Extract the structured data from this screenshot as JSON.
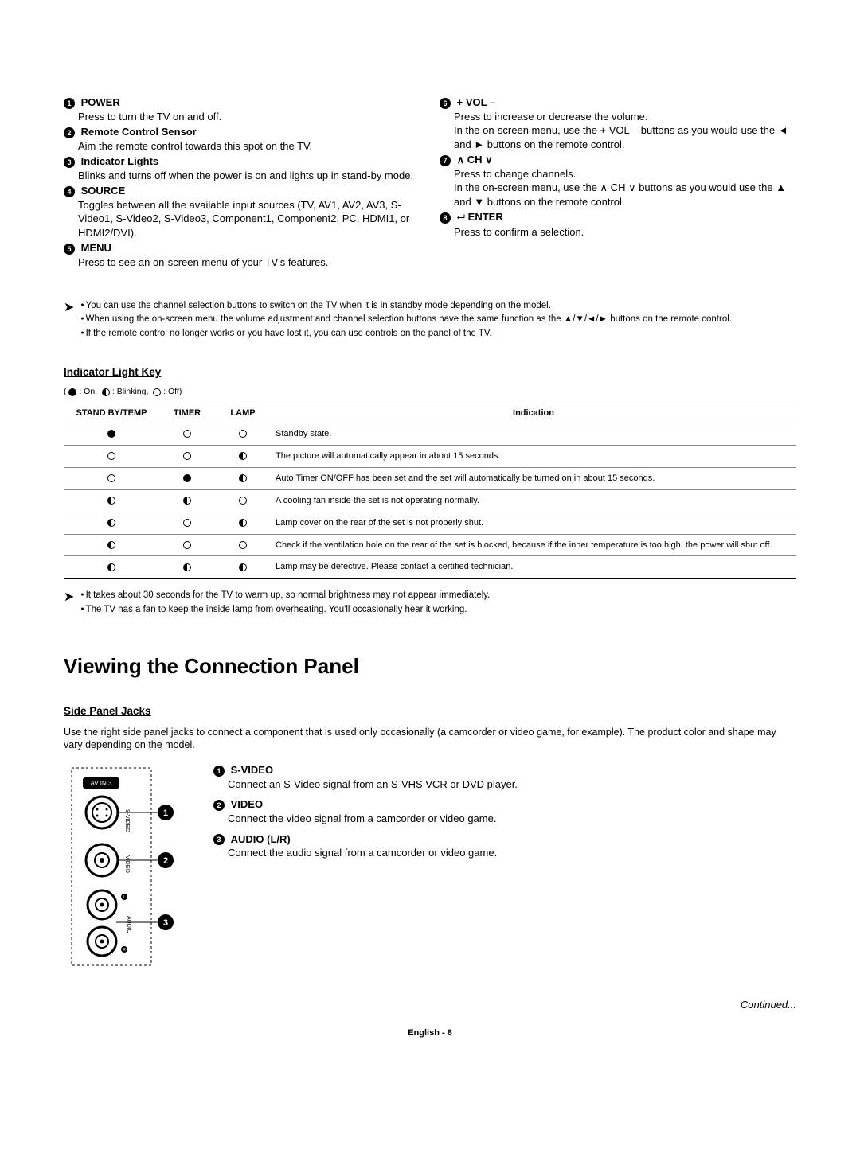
{
  "controls_left": [
    {
      "n": "1",
      "label": "POWER",
      "desc": "Press to turn the TV on and off."
    },
    {
      "n": "2",
      "label": "Remote Control Sensor",
      "desc": "Aim the remote control towards this spot on the TV."
    },
    {
      "n": "3",
      "label": "Indicator Lights",
      "desc": "Blinks and turns off when the power is on and lights up in stand-by mode."
    },
    {
      "n": "4",
      "label": "SOURCE",
      "desc": "Toggles between all the available input sources (TV, AV1, AV2, AV3, S-Video1, S-Video2, S-Video3, Component1, Component2, PC, HDMI1, or HDMI2/DVI)."
    },
    {
      "n": "5",
      "label": "MENU",
      "desc": "Press to see an on-screen menu of your TV's features."
    }
  ],
  "controls_right": [
    {
      "n": "6",
      "label": "+ VOL –",
      "desc": "Press to increase or decrease the volume.\nIn the on-screen menu, use the + VOL – buttons as you would use the ◄ and ► buttons on the remote control."
    },
    {
      "n": "7",
      "label": "∧ CH ∨",
      "desc": "Press to change channels.\nIn the on-screen menu, use the ∧ CH ∨ buttons as you would use the ▲ and ▼ buttons on the remote control."
    },
    {
      "n": "8",
      "label": "ENTER",
      "icon": "⮠",
      "desc": "Press to confirm a selection."
    }
  ],
  "notes1": [
    "You can use the channel selection buttons to switch on the TV when it is in standby mode depending on the model.",
    "When using the on-screen menu the volume adjustment and channel selection buttons have the same function as the ▲/▼/◄/► buttons on the remote control.",
    "If the remote control no longer works or you have lost it, you can use controls on the panel of the TV."
  ],
  "indicator_title": "Indicator Light Key",
  "legend": {
    "on": ": On,",
    "blinking": ": Blinking,",
    "off": ": Off)"
  },
  "table": {
    "headers": [
      "STAND BY/TEMP",
      "TIMER",
      "LAMP",
      "Indication"
    ],
    "rows": [
      {
        "s": "on",
        "t": "off",
        "l": "off",
        "txt": "Standby state."
      },
      {
        "s": "off",
        "t": "off",
        "l": "blink",
        "txt": "The picture will automatically appear in about 15 seconds."
      },
      {
        "s": "off",
        "t": "on",
        "l": "blink",
        "txt": "Auto Timer ON/OFF has been set and the set will automatically be turned on in about 15 seconds."
      },
      {
        "s": "blink",
        "t": "blink",
        "l": "off",
        "txt": "A cooling fan inside the set is not operating normally."
      },
      {
        "s": "blink",
        "t": "off",
        "l": "blink",
        "txt": "Lamp cover on the rear of the set is not properly shut."
      },
      {
        "s": "blink",
        "t": "off",
        "l": "off",
        "txt": "Check if the ventilation hole on the rear of the set is blocked, because if the inner temperature is too high, the power will shut off."
      },
      {
        "s": "blink",
        "t": "blink",
        "l": "blink",
        "txt": "Lamp may be defective. Please contact a certified technician."
      }
    ]
  },
  "notes2": [
    "It takes about 30 seconds for the TV to warm up, so normal brightness may not appear immediately.",
    "The TV has a fan to keep the inside lamp from overheating. You'll occasionally hear it working."
  ],
  "heading": "Viewing the Connection Panel",
  "side_title": "Side Panel Jacks",
  "side_intro": "Use the right side panel jacks to connect a component that is used only occasionally (a camcorder or video game, for example). The product color and shape may vary depending on the model.",
  "side_items": [
    {
      "n": "1",
      "label": "S-VIDEO",
      "desc": "Connect an S-Video signal from an S-VHS VCR or DVD player."
    },
    {
      "n": "2",
      "label": "VIDEO",
      "desc": "Connect the video signal from a camcorder or video game."
    },
    {
      "n": "3",
      "label": "AUDIO (L/R)",
      "desc": "Connect the audio signal from a camcorder or video game."
    }
  ],
  "panel_label": "AV IN 3",
  "jack_labels": {
    "svideo": "S-VIDEO",
    "video": "VIDEO",
    "audio": "AUDIO",
    "l": "L",
    "r": "R"
  },
  "continued": "Continued...",
  "footer": "English - 8"
}
